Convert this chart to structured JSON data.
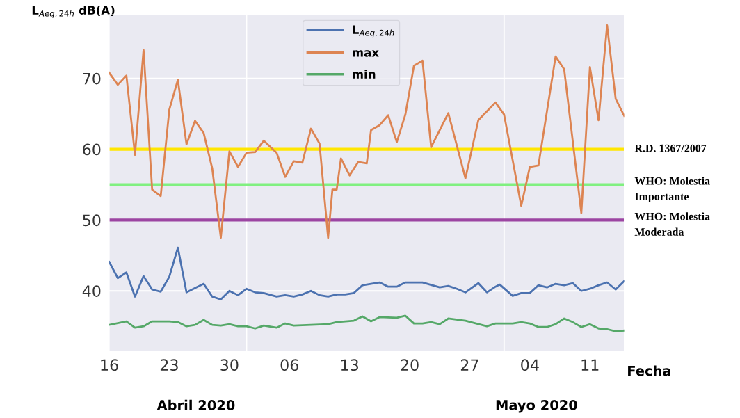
{
  "chart_data": {
    "type": "line",
    "ylabel": "L$_{Aeq,24h}$ dB(A)",
    "xlabel": "Fecha",
    "xlim": [
      "2020-03-16",
      "2020-05-15"
    ],
    "xticks": [
      {
        "value": "2020-03-16",
        "label": "16"
      },
      {
        "value": "2020-03-23",
        "label": "23"
      },
      {
        "value": "2020-03-30",
        "label": "30"
      },
      {
        "value": "2020-04-06",
        "label": "06"
      },
      {
        "value": "2020-04-13",
        "label": "13"
      },
      {
        "value": "2020-04-20",
        "label": "20"
      },
      {
        "value": "2020-04-27",
        "label": "27"
      },
      {
        "value": "2020-05-04",
        "label": "04"
      },
      {
        "value": "2020-05-11",
        "label": "11"
      }
    ],
    "ylim": [
      31.5,
      79
    ],
    "yticks": [
      40,
      50,
      60,
      70
    ],
    "grid": "y",
    "legend": "top",
    "line_style": "solid",
    "marker": "none",
    "series": [
      {
        "name": "L$_{Aeq,24h}$",
        "color": "#4c72b0",
        "x": [
          "2020-03-16",
          "2020-03-17",
          "2020-03-18",
          "2020-03-19",
          "2020-03-20",
          "2020-03-21",
          "2020-03-22",
          "2020-03-23",
          "2020-03-24",
          "2020-03-25",
          "2020-03-27",
          "2020-03-28",
          "2020-03-29",
          "2020-03-30",
          "2020-03-31",
          "2020-04-01",
          "2020-04-02",
          "2020-04-03",
          "2020-04-04T12:00",
          "2020-04-05T12:00",
          "2020-04-06T12:00",
          "2020-04-07T12:00",
          "2020-04-08T12:00",
          "2020-04-09T12:00",
          "2020-04-10T12:00",
          "2020-04-11T12:00",
          "2020-04-12T12:00",
          "2020-04-13T12:00",
          "2020-04-14T12:00",
          "2020-04-15T12:00",
          "2020-04-16T12:00",
          "2020-04-17T12:00",
          "2020-04-18T12:00",
          "2020-04-19T12:00",
          "2020-04-21T12:00",
          "2020-04-23T12:00",
          "2020-04-24T12:00",
          "2020-04-25T12:00",
          "2020-04-26T12:00",
          "2020-04-28",
          "2020-04-29",
          "2020-04-30",
          "2020-04-30T12:00",
          "2020-05-02",
          "2020-05-03",
          "2020-05-04",
          "2020-05-05",
          "2020-05-06",
          "2020-05-07",
          "2020-05-08",
          "2020-05-09",
          "2020-05-10",
          "2020-05-11",
          "2020-05-12",
          "2020-05-13",
          "2020-05-14",
          "2020-05-15"
        ],
        "values": [
          44.1,
          41.8,
          42.6,
          39.2,
          42.1,
          40.2,
          39.9,
          42.0,
          46.1,
          39.8,
          41.0,
          39.2,
          38.8,
          40.0,
          39.4,
          40.3,
          39.8,
          39.7,
          39.2,
          39.4,
          39.2,
          39.5,
          40.0,
          39.4,
          39.2,
          39.5,
          39.5,
          39.7,
          40.8,
          41.0,
          41.2,
          40.6,
          40.6,
          41.2,
          41.2,
          40.5,
          40.7,
          40.3,
          39.8,
          41.1,
          39.8,
          40.6,
          40.9,
          39.3,
          39.7,
          39.7,
          40.8,
          40.5,
          41.0,
          40.8,
          41.1,
          40.0,
          40.3,
          40.8,
          41.2,
          40.2,
          41.4
        ]
      },
      {
        "name": "max",
        "color": "#dd8452",
        "x": [
          "2020-03-16",
          "2020-03-17",
          "2020-03-18",
          "2020-03-19",
          "2020-03-20",
          "2020-03-21",
          "2020-03-22",
          "2020-03-23",
          "2020-03-24",
          "2020-03-25",
          "2020-03-26",
          "2020-03-27",
          "2020-03-28",
          "2020-03-29",
          "2020-03-30",
          "2020-03-31",
          "2020-04-01",
          "2020-04-02",
          "2020-04-03",
          "2020-04-04T12:00",
          "2020-04-05T12:00",
          "2020-04-06T12:00",
          "2020-04-07T12:00",
          "2020-04-08T12:00",
          "2020-04-09T12:00",
          "2020-04-10T12:00",
          "2020-04-11",
          "2020-04-11T12:00",
          "2020-04-12",
          "2020-04-13",
          "2020-04-14",
          "2020-04-15",
          "2020-04-15T12:00",
          "2020-04-16T12:00",
          "2020-04-17T12:00",
          "2020-04-18T12:00",
          "2020-04-19T12:00",
          "2020-04-20T12:00",
          "2020-04-21T12:00",
          "2020-04-22T12:00",
          "2020-04-24T12:00",
          "2020-04-26T12:00",
          "2020-04-28",
          "2020-04-30",
          "2020-05-01",
          "2020-05-03",
          "2020-05-04",
          "2020-05-05",
          "2020-05-07",
          "2020-05-08",
          "2020-05-10",
          "2020-05-11",
          "2020-05-12",
          "2020-05-13",
          "2020-05-14",
          "2020-05-15"
        ],
        "values": [
          70.8,
          69.1,
          70.4,
          59.2,
          74.0,
          54.3,
          53.4,
          65.6,
          69.8,
          60.7,
          64.0,
          62.3,
          57.3,
          47.5,
          59.7,
          57.5,
          59.5,
          59.6,
          61.2,
          59.5,
          56.1,
          58.3,
          58.1,
          62.9,
          60.8,
          47.5,
          54.3,
          54.3,
          58.7,
          56.3,
          58.2,
          58.0,
          62.7,
          63.4,
          64.8,
          61.0,
          64.9,
          71.8,
          72.5,
          60.3,
          65.1,
          55.9,
          64.1,
          66.6,
          64.9,
          52.0,
          57.5,
          57.7,
          73.1,
          71.3,
          51.0,
          71.6,
          64.1,
          77.5,
          67.1,
          64.7
        ]
      },
      {
        "name": "min",
        "color": "#55a868",
        "x": [
          "2020-03-16",
          "2020-03-18",
          "2020-03-19",
          "2020-03-20",
          "2020-03-21",
          "2020-03-23",
          "2020-03-24",
          "2020-03-25",
          "2020-03-26",
          "2020-03-27",
          "2020-03-28",
          "2020-03-29",
          "2020-03-30",
          "2020-03-31",
          "2020-04-01",
          "2020-04-02",
          "2020-04-03",
          "2020-04-04T12:00",
          "2020-04-05T12:00",
          "2020-04-06T12:00",
          "2020-04-08T12:00",
          "2020-04-10T12:00",
          "2020-04-11T12:00",
          "2020-04-12T12:00",
          "2020-04-13T12:00",
          "2020-04-14T12:00",
          "2020-04-15T12:00",
          "2020-04-16T12:00",
          "2020-04-18T12:00",
          "2020-04-19T12:00",
          "2020-04-20T12:00",
          "2020-04-21T12:00",
          "2020-04-22T12:00",
          "2020-04-23T12:00",
          "2020-04-24T12:00",
          "2020-04-26T12:00",
          "2020-04-29",
          "2020-04-30",
          "2020-05-02",
          "2020-05-03",
          "2020-05-04",
          "2020-05-05",
          "2020-05-06",
          "2020-05-07",
          "2020-05-08",
          "2020-05-09",
          "2020-05-10",
          "2020-05-11",
          "2020-05-12",
          "2020-05-13",
          "2020-05-14",
          "2020-05-15"
        ],
        "values": [
          35.2,
          35.7,
          34.8,
          35.0,
          35.7,
          35.7,
          35.6,
          35.0,
          35.2,
          35.9,
          35.2,
          35.1,
          35.3,
          35.0,
          35.0,
          34.7,
          35.1,
          34.8,
          35.4,
          35.1,
          35.2,
          35.3,
          35.6,
          35.7,
          35.8,
          36.4,
          35.7,
          36.3,
          36.2,
          36.5,
          35.4,
          35.4,
          35.6,
          35.3,
          36.1,
          35.8,
          35.0,
          35.4,
          35.4,
          35.6,
          35.4,
          34.9,
          34.9,
          35.3,
          36.1,
          35.6,
          34.9,
          35.3,
          34.7,
          34.6,
          34.3,
          34.4
        ]
      }
    ],
    "ref_lines": [
      {
        "axis": "y",
        "value": 60,
        "label": "R.D. 1367/2007",
        "color": "#ffe600"
      },
      {
        "axis": "y",
        "value": 55,
        "label": "WHO: Molestia\nImportante",
        "color": "#80f080"
      },
      {
        "axis": "y",
        "value": 50,
        "label": "WHO: Molestia\nModerada",
        "color": "#9c45a2"
      },
      {
        "axis": "x",
        "value": "2020-04-01",
        "color": "#ffffff"
      },
      {
        "axis": "x",
        "value": "2020-05-01",
        "color": "#ffffff"
      }
    ],
    "annotations": [
      "Abril 2020",
      "Mayo 2020"
    ]
  }
}
